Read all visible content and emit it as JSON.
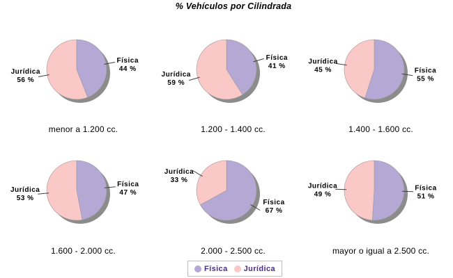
{
  "title": "% Vehículos por Cilindrada",
  "colors": {
    "fisica": "#b5a8d5",
    "juridica": "#fac8c6",
    "shadow": "#8c8c8c",
    "slice_outline": "#999999",
    "leader_line": "#404040",
    "label_text": "#000000",
    "legend_text": "#4a2d87",
    "legend_border": "#bcbccb"
  },
  "legend": {
    "position": "bottom",
    "items": [
      {
        "label": "Física",
        "color": "#b5a8d5"
      },
      {
        "label": "Jurídica",
        "color": "#fac8c6"
      }
    ]
  },
  "chart_data": {
    "type": "pie",
    "title": "% Vehículos por Cilindrada",
    "series": [
      "Física",
      "Jurídica"
    ],
    "unit": "%",
    "label_format": "{value} %",
    "grid": "2 rows x 3 columns",
    "charts": [
      {
        "category": "menor a 1.200 cc.",
        "fisica": 44,
        "juridica": 56
      },
      {
        "category": "1.200 - 1.400 cc.",
        "fisica": 41,
        "juridica": 59
      },
      {
        "category": "1.400 - 1.600 cc.",
        "fisica": 55,
        "juridica": 45
      },
      {
        "category": "1.600 - 2.000 cc.",
        "fisica": 47,
        "juridica": 53
      },
      {
        "category": "2.000 - 2.500 cc.",
        "fisica": 67,
        "juridica": 33
      },
      {
        "category": "mayor o igual a 2.500 cc.",
        "fisica": 51,
        "juridica": 49
      }
    ]
  }
}
